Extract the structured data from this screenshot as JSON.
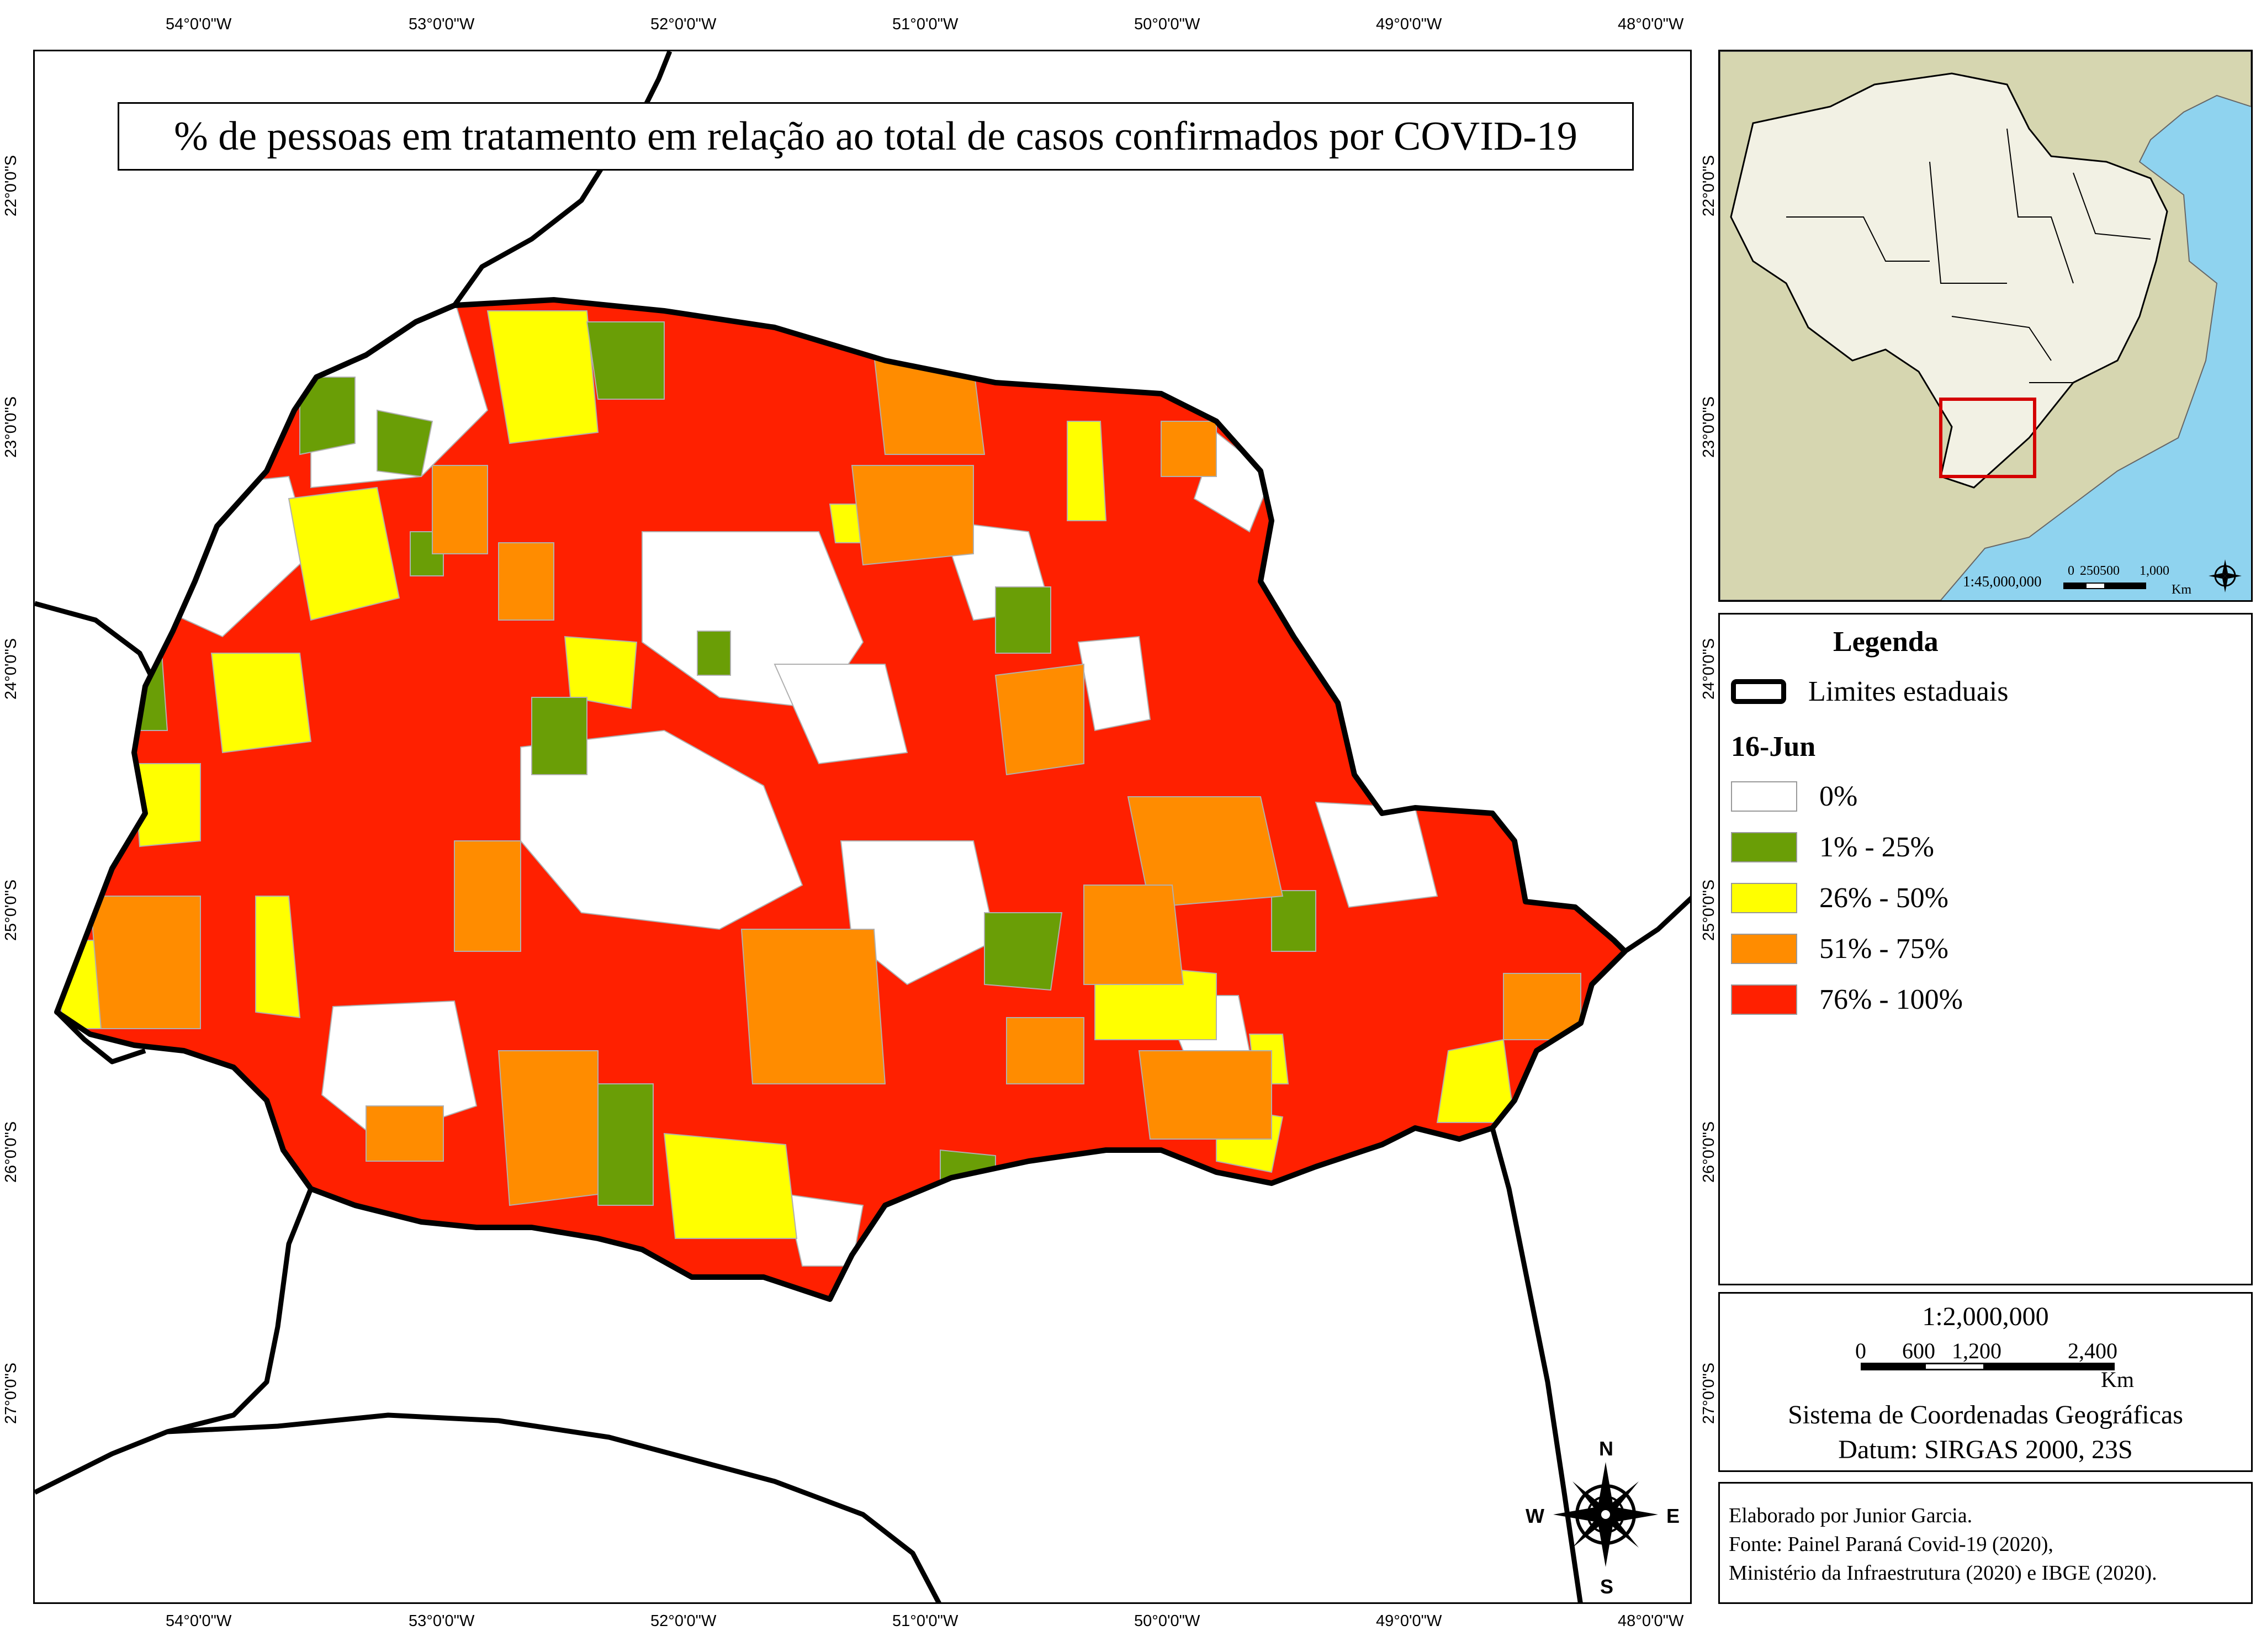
{
  "map": {
    "title": "% de pessoas em tratamento em relação ao total de casos confirmados por COVID-19",
    "longitude_labels": [
      "54°0'0\"W",
      "53°0'0\"W",
      "52°0'0\"W",
      "51°0'0\"W",
      "50°0'0\"W",
      "49°0'0\"W",
      "48°0'0\"W"
    ],
    "latitude_labels": [
      "22°0'0\"S",
      "23°0'0\"S",
      "24°0'0\"S",
      "25°0'0\"S",
      "26°0'0\"S",
      "27°0'0\"S"
    ],
    "compass": {
      "n": "N",
      "s": "S",
      "e": "E",
      "w": "W"
    },
    "colors": {
      "none": "#ffffff",
      "c1": "#6a9e06",
      "c2": "#ffff00",
      "c3": "#ff8c00",
      "c4": "#ff2000",
      "sea": "#8fd3ef",
      "land_other": "#d6d6b0",
      "land_br": "#f2f1e4"
    }
  },
  "inset": {
    "scale_label": "1:45,000,000",
    "scale_ticks": [
      "0",
      "250",
      "500",
      "1,000"
    ],
    "scale_unit": "Km"
  },
  "legend": {
    "title": "Legenda",
    "boundary_label": "Limites estaduais",
    "date": "16-Jun",
    "classes": [
      {
        "label": "0%",
        "color": "#ffffff"
      },
      {
        "label": "1% - 25%",
        "color": "#6a9e06"
      },
      {
        "label": "26% - 50%",
        "color": "#ffff00"
      },
      {
        "label": "51% - 75%",
        "color": "#ff8c00"
      },
      {
        "label": "76% - 100%",
        "color": "#ff2000"
      }
    ]
  },
  "scale": {
    "ratio": "1:2,000,000",
    "ticks": [
      "0",
      "600",
      "1,200",
      "2,400"
    ],
    "unit": "Km",
    "crs": "Sistema de Coordenadas Geográficas",
    "datum": "Datum: SIRGAS 2000, 23S"
  },
  "credits": {
    "line1": "Elaborado por Junior Garcia.",
    "line2": "Fonte: Painel Paraná Covid-19 (2020),",
    "line3": "Ministério da Infraestrutura (2020) e IBGE (2020)."
  }
}
